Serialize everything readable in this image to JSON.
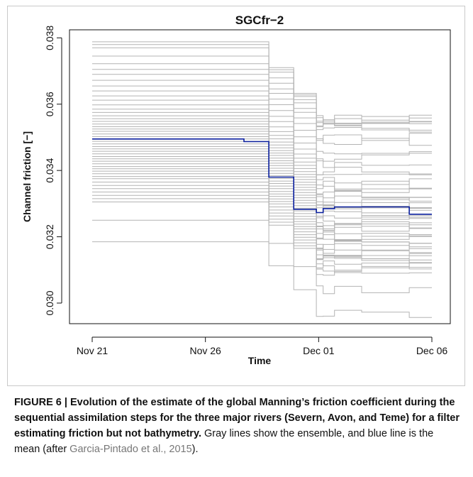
{
  "chart_data": {
    "type": "line",
    "title": "SGCfr−2",
    "xlabel": "Time",
    "ylabel": "Channel friction [−]",
    "x_ticks": [
      "Nov 21",
      "Nov 26",
      "Dec 01",
      "Dec 06"
    ],
    "x_tick_days": [
      0,
      5,
      10,
      15
    ],
    "y_ticks": [
      "0.030",
      "0.032",
      "0.034",
      "0.036",
      "0.038"
    ],
    "y_tick_values": [
      0.03,
      0.032,
      0.034,
      0.036,
      0.038
    ],
    "xlim": [
      0,
      15
    ],
    "ylim": [
      0.0294,
      0.0382
    ],
    "grid": false,
    "step_days": [
      0,
      6.7,
      7.8,
      8.9,
      9.9,
      10.2,
      10.7,
      11.9,
      14.0,
      15.0
    ],
    "series": [
      {
        "color": "#0a1f9e",
        "values": [
          0.03495,
          0.03487,
          0.0338,
          0.03283,
          0.03273,
          0.03285,
          0.0329,
          0.0329,
          0.03268
        ]
      }
    ],
    "ensemble": {
      "color": "#b4b4b4",
      "initial_values": [
        0.03185,
        0.0325,
        0.03305,
        0.03315,
        0.03325,
        0.03335,
        0.03345,
        0.03355,
        0.03365,
        0.03375,
        0.03382,
        0.0339,
        0.03398,
        0.03405,
        0.03412,
        0.0342,
        0.03428,
        0.03435,
        0.03442,
        0.0345,
        0.03458,
        0.03465,
        0.03472,
        0.0348,
        0.03488,
        0.03495,
        0.03502,
        0.0351,
        0.03518,
        0.03525,
        0.03532,
        0.0354,
        0.03548,
        0.03556,
        0.03565,
        0.03575,
        0.03585,
        0.03598,
        0.03612,
        0.03625,
        0.0364,
        0.03655,
        0.03672,
        0.0369,
        0.03705,
        0.03722,
        0.03745,
        0.0377,
        0.0378,
        0.03788
      ],
      "final_values": [
        0.02968,
        0.0304,
        0.03095,
        0.03102,
        0.0311,
        0.03118,
        0.03125,
        0.03132,
        0.0314,
        0.03148,
        0.03155,
        0.03162,
        0.0317,
        0.03178,
        0.03186,
        0.03195,
        0.03203,
        0.03212,
        0.0322,
        0.03228,
        0.03236,
        0.03244,
        0.03252,
        0.0326,
        0.03268,
        0.03276,
        0.03284,
        0.03292,
        0.033,
        0.03308,
        0.03316,
        0.03325,
        0.03335,
        0.03345,
        0.03356,
        0.03368,
        0.03382,
        0.03398,
        0.03418,
        0.0344,
        0.03462,
        0.03485,
        0.03502,
        0.03518,
        0.03528,
        0.03545,
        0.03548,
        0.0355,
        0.03552,
        0.03555
      ]
    }
  },
  "caption": {
    "lead": "FIGURE 6 | Evolution of the estimate of the global Manning’s friction coefficient during the sequential assimilation steps for the three major rivers (Severn, Avon, and Teme) for a filter estimating friction but not bathymetry.",
    "body": " Gray lines show the ensemble, and blue line is the mean (after ",
    "citation": "Garcia-Pintado et al., 2015",
    "tail": ")."
  }
}
